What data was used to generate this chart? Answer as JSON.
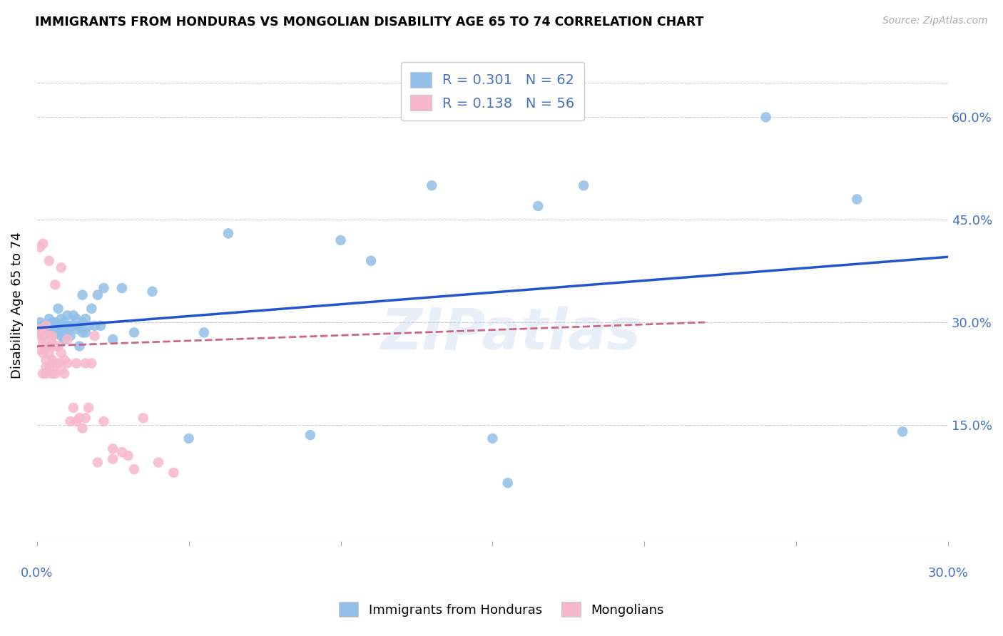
{
  "title": "IMMIGRANTS FROM HONDURAS VS MONGOLIAN DISABILITY AGE 65 TO 74 CORRELATION CHART",
  "source": "Source: ZipAtlas.com",
  "ylabel": "Disability Age 65 to 74",
  "ytick_labels": [
    "15.0%",
    "30.0%",
    "45.0%",
    "60.0%"
  ],
  "ytick_values": [
    0.15,
    0.3,
    0.45,
    0.6
  ],
  "xlim": [
    0.0,
    0.3
  ],
  "ylim": [
    -0.02,
    0.67
  ],
  "legend1_text": "R = 0.301   N = 62",
  "legend2_text": "R = 0.138   N = 56",
  "legend_bottom1": "Immigrants from Honduras",
  "legend_bottom2": "Mongolians",
  "watermark": "ZIPatlas",
  "blue_color": "#92c0e8",
  "pink_color": "#f7b8cb",
  "line_blue": "#2255cc",
  "line_pink": "#cc6688",
  "blue_points_x": [
    0.001,
    0.001,
    0.002,
    0.002,
    0.003,
    0.003,
    0.004,
    0.004,
    0.004,
    0.005,
    0.005,
    0.005,
    0.006,
    0.006,
    0.007,
    0.007,
    0.007,
    0.008,
    0.008,
    0.009,
    0.009,
    0.009,
    0.01,
    0.01,
    0.01,
    0.011,
    0.011,
    0.012,
    0.012,
    0.013,
    0.013,
    0.014,
    0.014,
    0.015,
    0.015,
    0.015,
    0.016,
    0.016,
    0.017,
    0.018,
    0.019,
    0.02,
    0.021,
    0.022,
    0.025,
    0.028,
    0.032,
    0.038,
    0.05,
    0.055,
    0.063,
    0.09,
    0.1,
    0.11,
    0.13,
    0.15,
    0.155,
    0.165,
    0.18,
    0.24,
    0.27,
    0.285
  ],
  "blue_points_y": [
    0.285,
    0.3,
    0.28,
    0.295,
    0.285,
    0.295,
    0.265,
    0.295,
    0.305,
    0.28,
    0.295,
    0.3,
    0.29,
    0.3,
    0.285,
    0.295,
    0.32,
    0.28,
    0.305,
    0.275,
    0.29,
    0.3,
    0.285,
    0.295,
    0.31,
    0.28,
    0.295,
    0.295,
    0.31,
    0.29,
    0.305,
    0.265,
    0.295,
    0.285,
    0.3,
    0.34,
    0.285,
    0.305,
    0.295,
    0.32,
    0.295,
    0.34,
    0.295,
    0.35,
    0.275,
    0.35,
    0.285,
    0.345,
    0.13,
    0.285,
    0.43,
    0.135,
    0.42,
    0.39,
    0.5,
    0.13,
    0.065,
    0.47,
    0.5,
    0.6,
    0.48,
    0.14
  ],
  "pink_points_x": [
    0.001,
    0.001,
    0.001,
    0.001,
    0.002,
    0.002,
    0.002,
    0.002,
    0.002,
    0.003,
    0.003,
    0.003,
    0.003,
    0.003,
    0.004,
    0.004,
    0.004,
    0.004,
    0.005,
    0.005,
    0.005,
    0.005,
    0.006,
    0.006,
    0.006,
    0.006,
    0.007,
    0.007,
    0.008,
    0.008,
    0.008,
    0.009,
    0.009,
    0.01,
    0.01,
    0.011,
    0.012,
    0.013,
    0.013,
    0.014,
    0.015,
    0.016,
    0.016,
    0.017,
    0.018,
    0.019,
    0.02,
    0.022,
    0.025,
    0.025,
    0.028,
    0.03,
    0.032,
    0.035,
    0.04,
    0.045
  ],
  "pink_points_y": [
    0.26,
    0.28,
    0.29,
    0.41,
    0.225,
    0.255,
    0.27,
    0.285,
    0.415,
    0.225,
    0.235,
    0.245,
    0.265,
    0.295,
    0.235,
    0.255,
    0.28,
    0.39,
    0.225,
    0.245,
    0.27,
    0.28,
    0.225,
    0.24,
    0.265,
    0.355,
    0.24,
    0.265,
    0.23,
    0.255,
    0.38,
    0.225,
    0.245,
    0.24,
    0.275,
    0.155,
    0.175,
    0.155,
    0.24,
    0.16,
    0.145,
    0.16,
    0.24,
    0.175,
    0.24,
    0.28,
    0.095,
    0.155,
    0.115,
    0.1,
    0.11,
    0.105,
    0.085,
    0.16,
    0.095,
    0.08
  ]
}
